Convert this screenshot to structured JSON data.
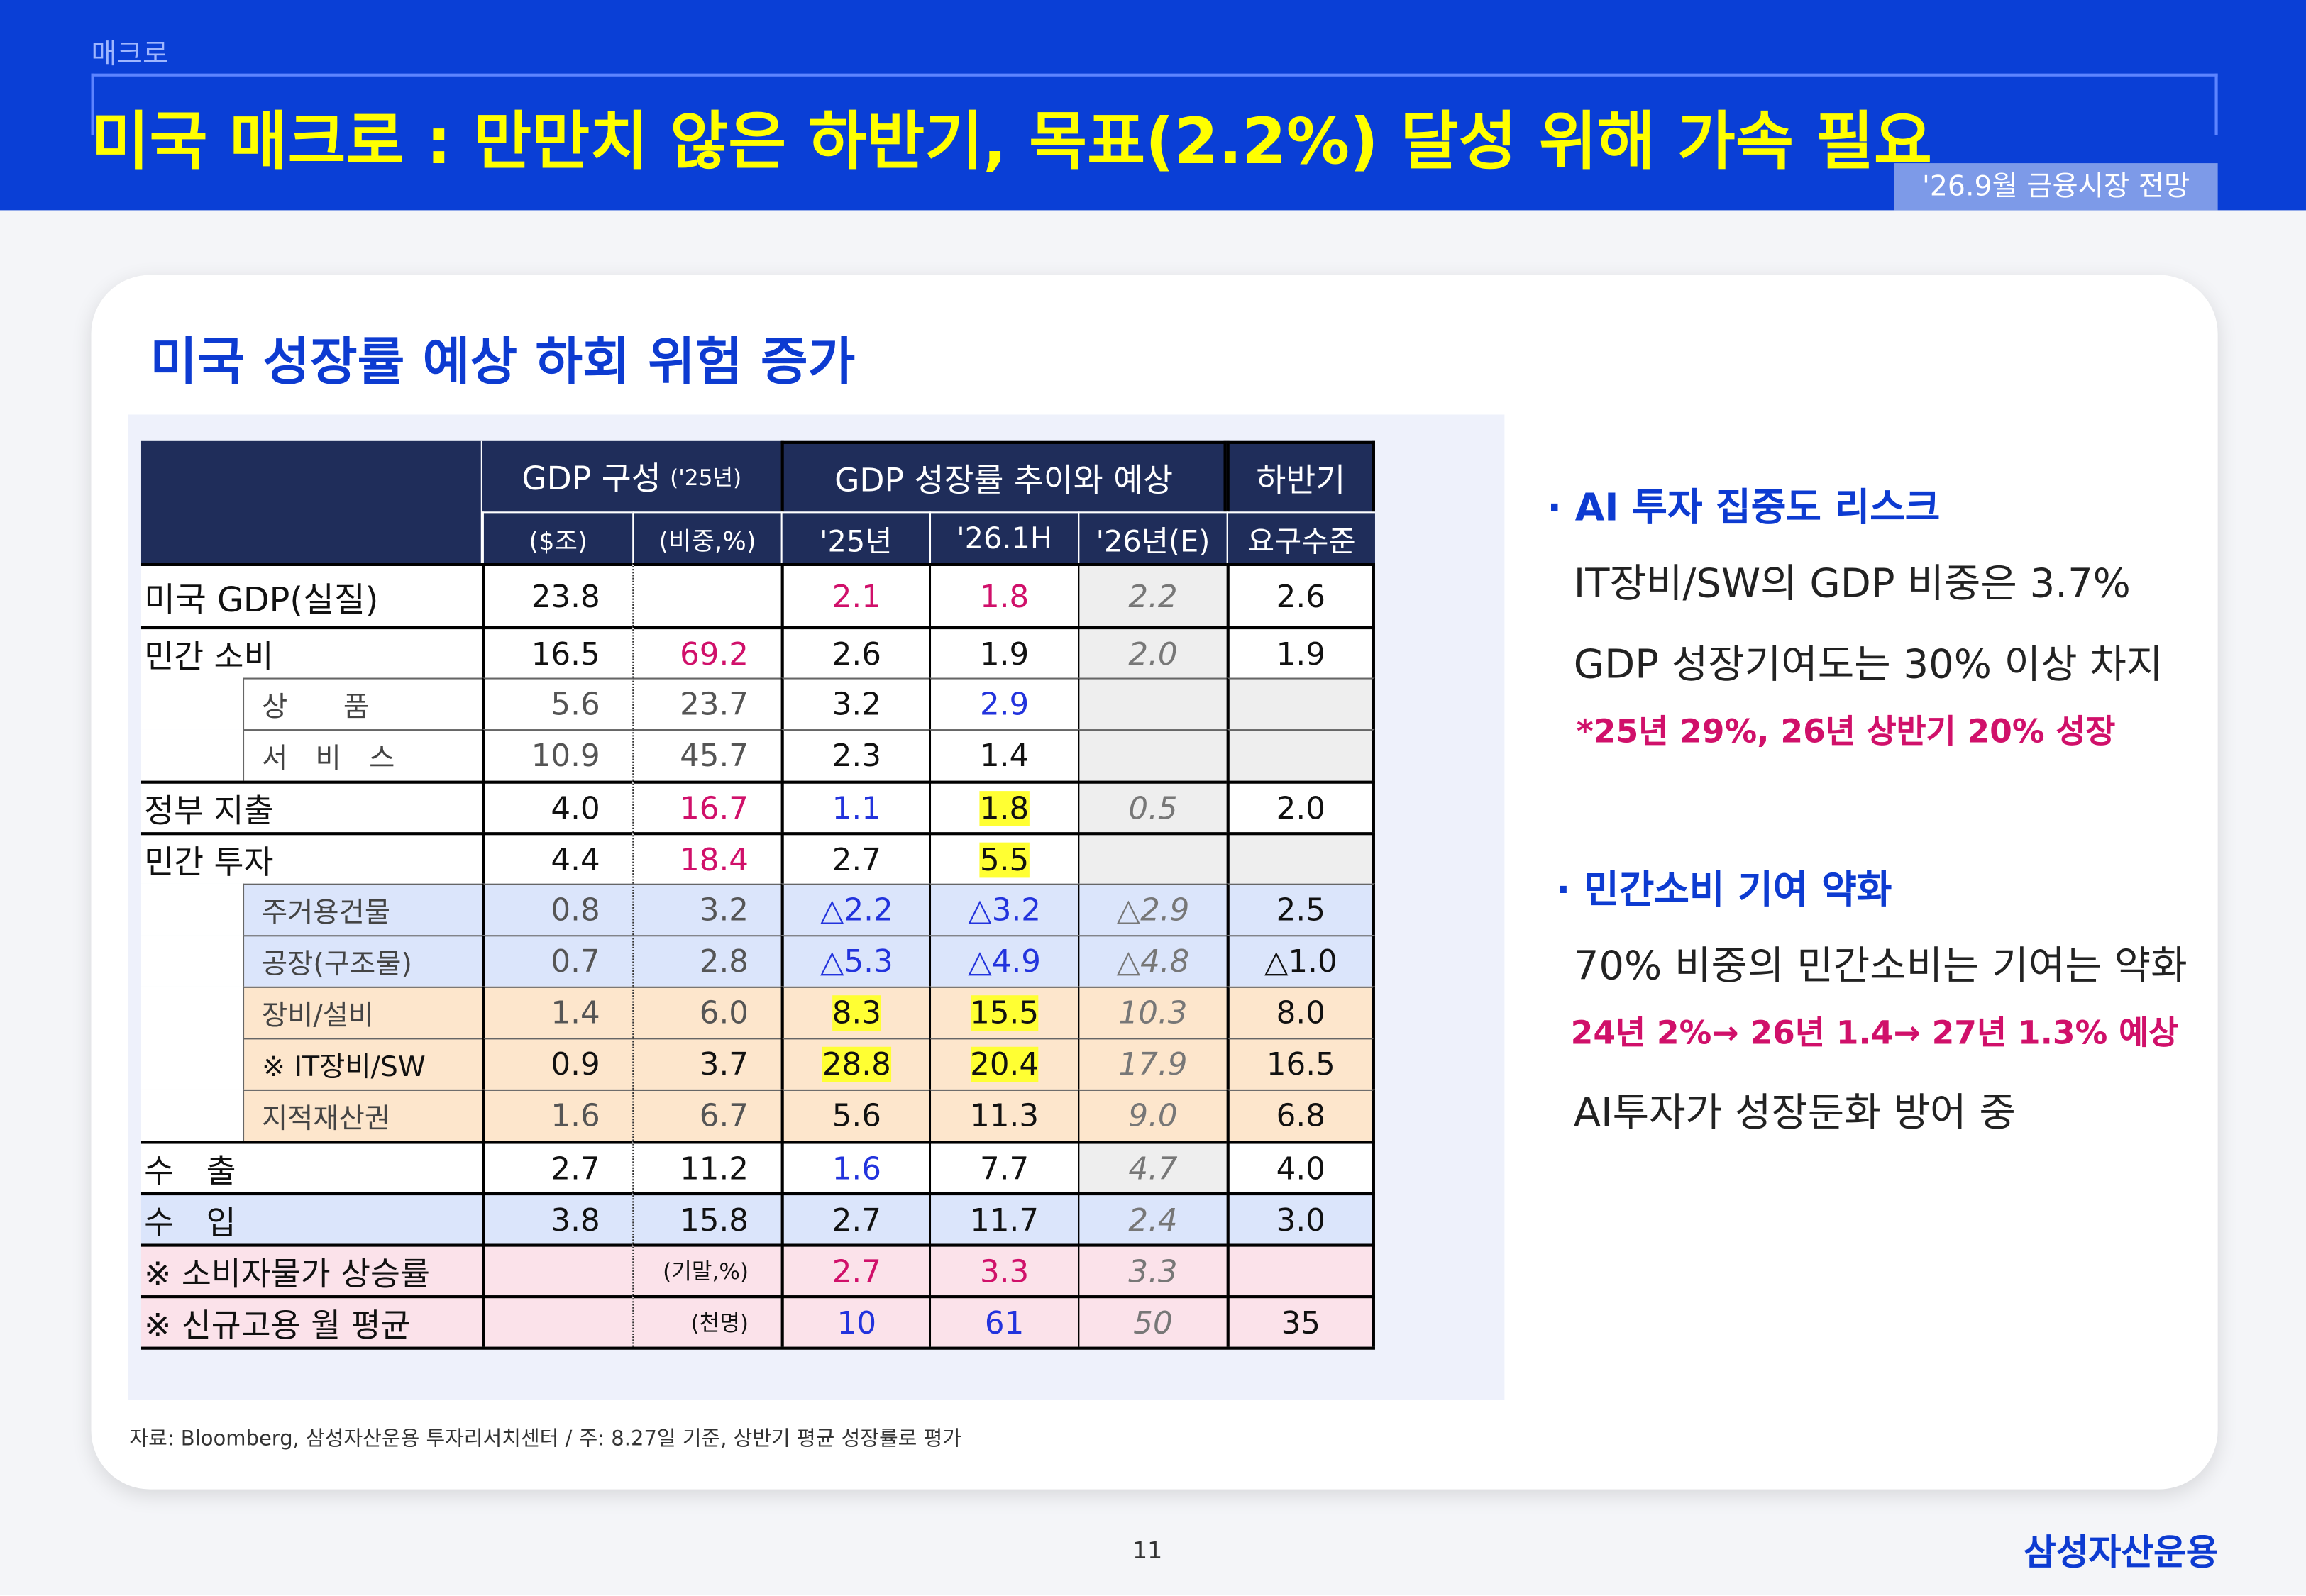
{
  "header": {
    "section": "매크로",
    "title": "미국 매크로 : 만만치 않은 하반기, 목표(2.2%) 달성 위해 가속 필요",
    "badge": "'26.9월 금융시장 전망"
  },
  "subtitle": "미국 성장률 예상 하회 위험 증가",
  "table": {
    "group_headers": {
      "composition": "GDP 구성",
      "composition_year": "('25년)",
      "growth": "GDP 성장률 추이와 예상",
      "second_half": "하반기"
    },
    "columns": [
      "($조)",
      "(비중,%)",
      "'25년",
      "'26.1H",
      "'26년(E)",
      "요구수준"
    ],
    "rows": [
      {
        "label": "미국 GDP(실질)",
        "cells": [
          "23.8",
          null,
          "2.1",
          "1.8",
          "2.2",
          "2.6"
        ]
      },
      {
        "label": "민간 소비",
        "cells": [
          "16.5",
          "69.2",
          "2.6",
          "1.9",
          "2.0",
          "1.9"
        ]
      },
      {
        "label": "상　　품",
        "cells": [
          "5.6",
          "23.7",
          "3.2",
          "2.9",
          null,
          null
        ]
      },
      {
        "label": "서　비　스",
        "cells": [
          "10.9",
          "45.7",
          "2.3",
          "1.4",
          null,
          null
        ]
      },
      {
        "label": "정부 지출",
        "cells": [
          "4.0",
          "16.7",
          "1.1",
          "1.8",
          "0.5",
          "2.0"
        ]
      },
      {
        "label": "민간 투자",
        "cells": [
          "4.4",
          "18.4",
          "2.7",
          "5.5",
          null,
          null
        ]
      },
      {
        "label": "주거용건물",
        "cells": [
          "0.8",
          "3.2",
          "△2.2",
          "△3.2",
          "△2.9",
          "2.5"
        ]
      },
      {
        "label": "공장(구조물)",
        "cells": [
          "0.7",
          "2.8",
          "△5.3",
          "△4.9",
          "△4.8",
          "△1.0"
        ]
      },
      {
        "label": "장비/설비",
        "cells": [
          "1.4",
          "6.0",
          "8.3",
          "15.5",
          "10.3",
          "8.0"
        ]
      },
      {
        "label": "※ IT장비/SW",
        "cells": [
          "0.9",
          "3.7",
          "28.8",
          "20.4",
          "17.9",
          "16.5"
        ]
      },
      {
        "label": "지적재산권",
        "cells": [
          "1.6",
          "6.7",
          "5.6",
          "11.3",
          "9.0",
          "6.8"
        ]
      },
      {
        "label": "수　출",
        "cells": [
          "2.7",
          "11.2",
          "1.6",
          "7.7",
          "4.7",
          "4.0"
        ]
      },
      {
        "label": "수　입",
        "cells": [
          "3.8",
          "15.8",
          "2.7",
          "11.7",
          "2.4",
          "3.0"
        ]
      },
      {
        "label": "※ 소비자물가 상승률",
        "cells": [
          null,
          "(기말,%)",
          "2.7",
          "3.3",
          "3.3",
          null
        ]
      },
      {
        "label": "※ 신규고용 월 평균",
        "cells": [
          null,
          "(천명)",
          "10",
          "61",
          "50",
          "35"
        ]
      }
    ]
  },
  "bullets": [
    {
      "title": "· AI 투자 집중도 리스크",
      "lines": [
        "IT장비/SW의 GDP 비중은 3.7%",
        "GDP 성장기여도는 30% 이상 차지"
      ],
      "note": "*25년 29%, 26년 상반기 20% 성장"
    },
    {
      "title": "· 민간소비 기여 약화",
      "lines": [
        "70% 비중의 민간소비는 기여는 약화"
      ],
      "note": "24년 2%→ 26년 1.4→ 27년 1.3% 예상",
      "after": "AI투자가 성장둔화 방어 중"
    }
  ],
  "footer": {
    "source": "자료: Bloomberg, 삼성자산운용 투자리서치센터 / 주: 8.27일 기준, 상반기 평균 성장률로 평가",
    "page": "11",
    "brand": "삼성자산운용"
  }
}
